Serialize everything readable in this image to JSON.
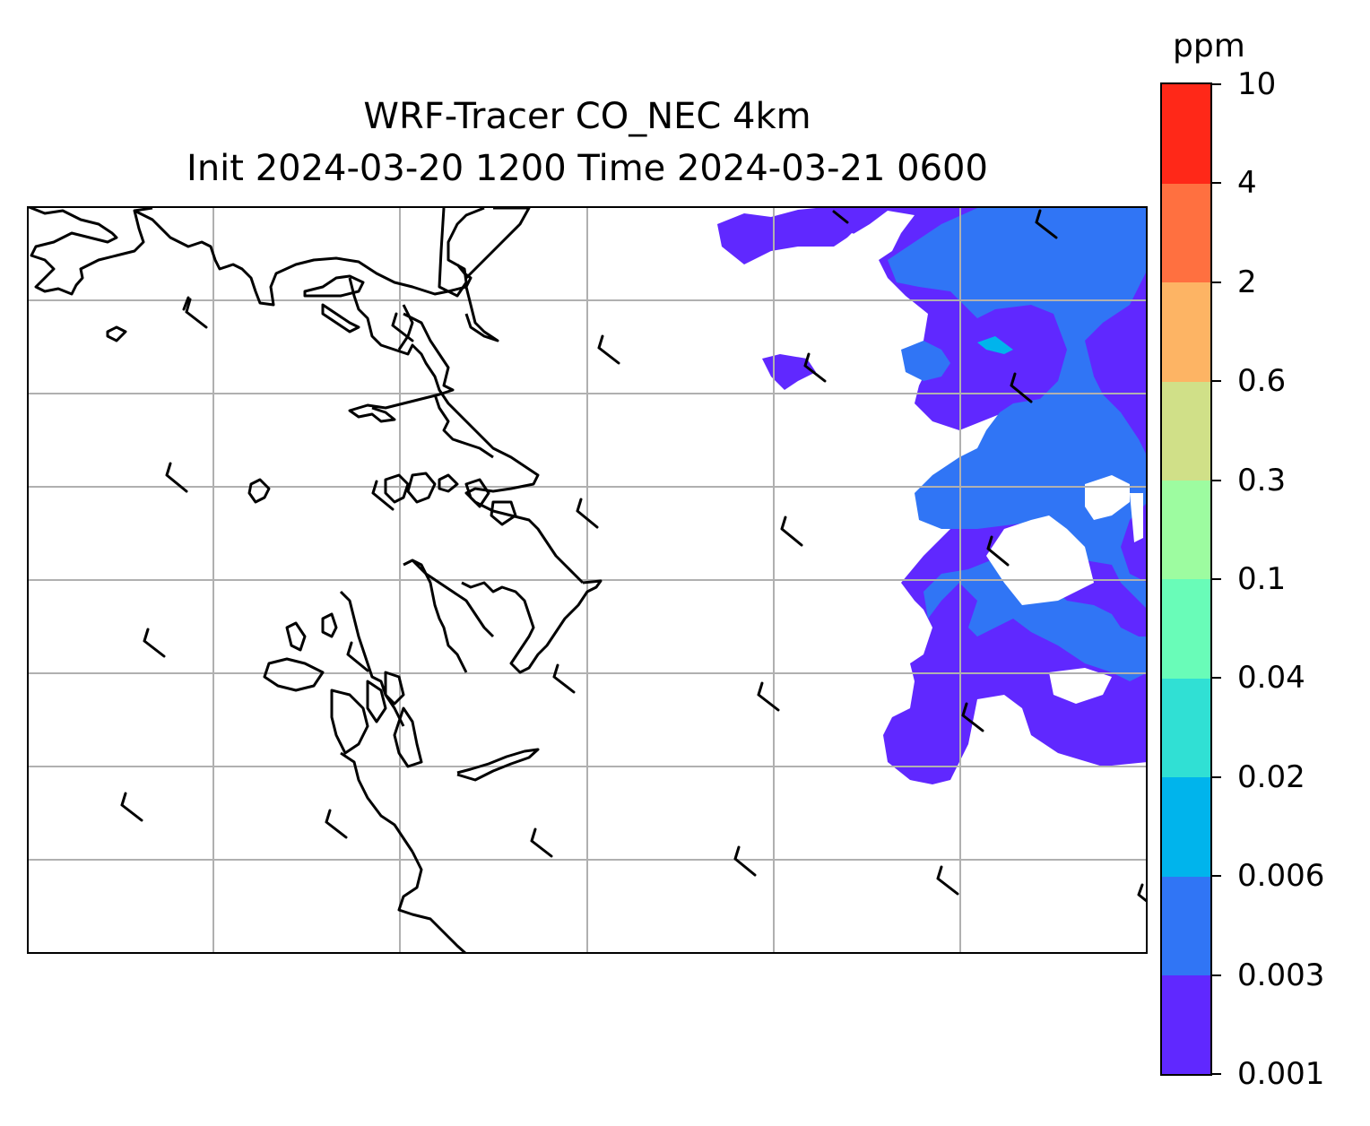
{
  "title": {
    "line1": "WRF-Tracer CO_NEC 4km",
    "line2": "Init 2024-03-20 1200 Time 2024-03-21 0600"
  },
  "colorbar": {
    "unit": "ppm",
    "levels": [
      "0.001",
      "0.003",
      "0.006",
      "0.02",
      "0.04",
      "0.1",
      "0.3",
      "0.6",
      "2",
      "4",
      "10"
    ],
    "colors": [
      "#6028ff",
      "#3075f5",
      "#00b4ec",
      "#30e0d4",
      "#69fcb8",
      "#9dfca0",
      "#d0e088",
      "#fdb464",
      "#ff7040",
      "#ff2818"
    ]
  },
  "map": {
    "gridlines": true,
    "gridline_color": "#b0b0b0",
    "coastline_color": "#000000",
    "wind_barbs": true
  },
  "chart_data": {
    "type": "heatmap",
    "variable": "CO_NEC",
    "unit": "ppm",
    "title": "WRF-Tracer CO_NEC 4km",
    "subtitle": "Init 2024-03-20 1200 Time 2024-03-21 0600",
    "colorbar_levels": [
      0.001,
      0.003,
      0.006,
      0.02,
      0.04,
      0.1,
      0.3,
      0.6,
      2,
      4,
      10
    ],
    "observed_level_bands": [
      [
        0.001,
        0.003
      ],
      [
        0.003,
        0.006
      ],
      [
        0.006,
        0.02
      ]
    ]
  }
}
